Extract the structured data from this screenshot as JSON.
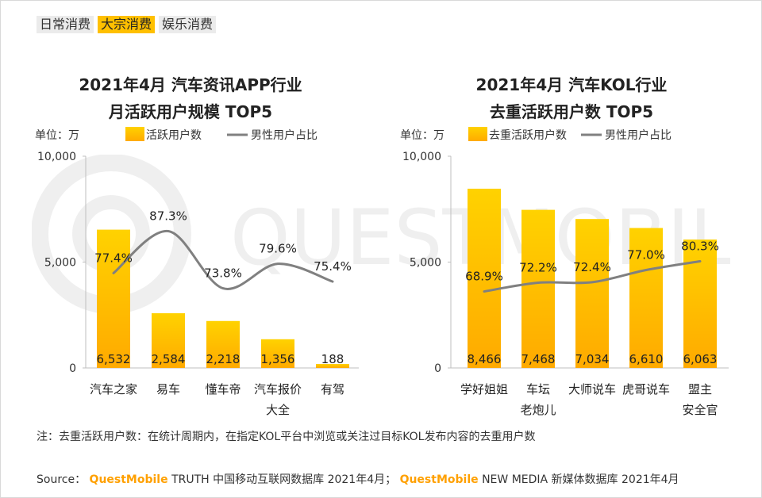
{
  "tabs": [
    {
      "label": "日常消费",
      "active": false
    },
    {
      "label": "大宗消费",
      "active": true
    },
    {
      "label": "娱乐消费",
      "active": false
    }
  ],
  "watermark_text": "QUESTMOBILE",
  "colors": {
    "bar_top": "#ffd200",
    "bar_bottom": "#ffaa00",
    "line": "#808080",
    "tab_active": "#ffc000",
    "brand": "#ffa000"
  },
  "chart_data": [
    {
      "type": "bar",
      "title_line1": "2021年4月 汽车资讯APP行业",
      "title_line2": "月活跃用户规模 TOP5",
      "unit_label": "单位：万",
      "legend": {
        "bar": "活跃用户数",
        "line": "男性用户占比"
      },
      "categories": [
        [
          "汽车之家"
        ],
        [
          "易车"
        ],
        [
          "懂车帝"
        ],
        [
          "汽车报价",
          "大全"
        ],
        [
          "有驾"
        ]
      ],
      "series": [
        {
          "name": "活跃用户数",
          "kind": "bar",
          "values": [
            6532,
            2584,
            2218,
            1356,
            188
          ],
          "labels": [
            "6,532",
            "2,584",
            "2,218",
            "1,356",
            "188"
          ]
        },
        {
          "name": "男性用户占比",
          "kind": "line",
          "values": [
            77.4,
            87.3,
            73.8,
            79.6,
            75.4
          ],
          "labels": [
            "77.4%",
            "87.3%",
            "73.8%",
            "79.6%",
            "75.4%"
          ]
        }
      ],
      "yticks": [
        {
          "v": 0,
          "label": "0"
        },
        {
          "v": 5000,
          "label": "5,000"
        },
        {
          "v": 10000,
          "label": "10,000"
        }
      ],
      "ylim": [
        0,
        10000
      ],
      "line_scale": [
        55,
        105
      ]
    },
    {
      "type": "bar",
      "title_line1": "2021年4月 汽车KOL行业",
      "title_line2": "去重活跃用户数 TOP5",
      "unit_label": "单位：万",
      "legend": {
        "bar": "去重活跃用户数",
        "line": "男性用户占比"
      },
      "categories": [
        [
          "学好姐姐"
        ],
        [
          "车坛",
          "老炮儿"
        ],
        [
          "大师说车"
        ],
        [
          "虎哥说车"
        ],
        [
          "盟主",
          "安全官"
        ]
      ],
      "series": [
        {
          "name": "去重活跃用户数",
          "kind": "bar",
          "values": [
            8466,
            7468,
            7034,
            6610,
            6063
          ],
          "labels": [
            "8,466",
            "7,468",
            "7,034",
            "6,610",
            "6,063"
          ]
        },
        {
          "name": "男性用户占比",
          "kind": "line",
          "values": [
            68.9,
            72.2,
            72.4,
            77.0,
            80.3
          ],
          "labels": [
            "68.9%",
            "72.2%",
            "72.4%",
            "77.0%",
            "80.3%"
          ]
        }
      ],
      "yticks": [
        {
          "v": 0,
          "label": "0"
        },
        {
          "v": 5000,
          "label": "5,000"
        },
        {
          "v": 10000,
          "label": "10,000"
        }
      ],
      "ylim": [
        0,
        10000
      ],
      "line_scale": [
        40,
        120
      ]
    }
  ],
  "note": "注：去重活跃用户数：在统计周期内，在指定KOL平台中浏览或关注过目标KOL发布内容的去重用户数",
  "source": {
    "prefix": "Source：",
    "brand1": "QuestMobile",
    "text1": " TRUTH 中国移动互联网数据库 2021年4月；",
    "brand2": "QuestMobile",
    "text2": "NEW MEDIA 新媒体数据库 2021年4月"
  }
}
